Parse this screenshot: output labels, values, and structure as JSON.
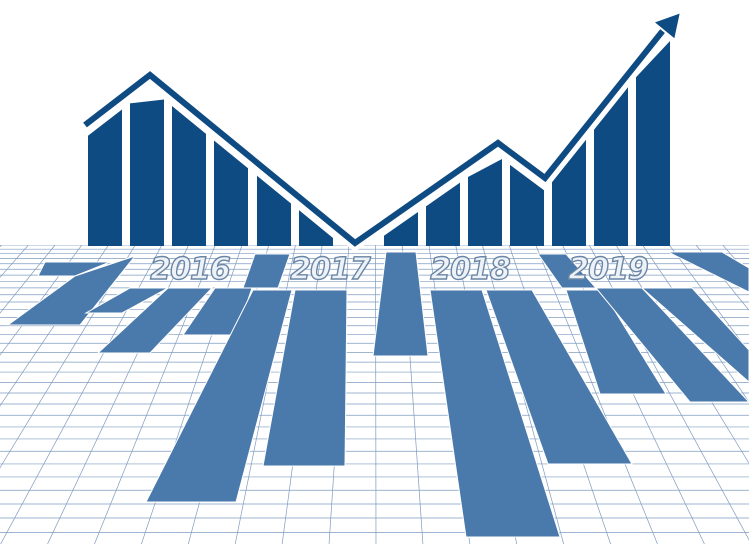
{
  "years": [
    "2016",
    "2017",
    "2018",
    "2019"
  ]
}
